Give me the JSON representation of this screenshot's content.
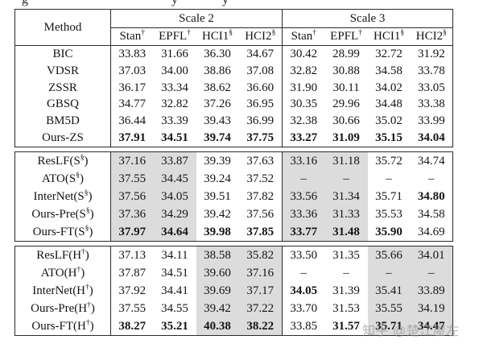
{
  "caption_fragments": [
    "g",
    "y",
    "y"
  ],
  "colors": {
    "shade": "#dcdcdc",
    "border": "#2b2b2b",
    "watermark_gray": "#8f8f8f"
  },
  "table": {
    "method_header": "Method",
    "groups": [
      "Scale 2",
      "Scale 3"
    ],
    "sub_columns": [
      "Stan{†}",
      "EPFL{†}",
      "HCI1{§}",
      "HCI2{§}"
    ],
    "blocks": [
      {
        "shaded_columns": "none",
        "rows": [
          {
            "method": "BIC",
            "values": [
              "33.83",
              "31.66",
              "36.30",
              "34.67",
              "30.42",
              "28.99",
              "32.72",
              "31.92"
            ],
            "bold": []
          },
          {
            "method": "VDSR",
            "values": [
              "37.03",
              "34.00",
              "38.86",
              "37.08",
              "32.82",
              "30.88",
              "34.58",
              "33.78"
            ],
            "bold": []
          },
          {
            "method": "ZSSR",
            "values": [
              "36.17",
              "33.34",
              "38.62",
              "36.60",
              "31.90",
              "30.11",
              "34.02",
              "33.05"
            ],
            "bold": []
          },
          {
            "method": "GBSQ",
            "values": [
              "34.77",
              "32.82",
              "37.26",
              "36.95",
              "30.35",
              "29.96",
              "34.48",
              "33.38"
            ],
            "bold": []
          },
          {
            "method": "BM5D",
            "values": [
              "36.44",
              "33.39",
              "39.43",
              "36.99",
              "32.38",
              "30.66",
              "35.02",
              "33.99"
            ],
            "bold": []
          },
          {
            "method": "Ours-ZS",
            "values": [
              "37.91",
              "34.51",
              "39.74",
              "37.75",
              "33.27",
              "31.09",
              "35.15",
              "34.04"
            ],
            "bold": [
              0,
              1,
              2,
              3,
              4,
              5,
              6,
              7
            ]
          }
        ]
      },
      {
        "shaded_columns": "stan-epfl",
        "rows": [
          {
            "method": "ResLF(S{§})",
            "values": [
              "37.16",
              "33.87",
              "39.39",
              "37.63",
              "33.16",
              "31.18",
              "35.72",
              "34.74"
            ],
            "bold": []
          },
          {
            "method": "ATO(S{§})",
            "values": [
              "37.55",
              "34.45",
              "39.24",
              "37.52",
              "–",
              "–",
              "–",
              "–"
            ],
            "bold": []
          },
          {
            "method": "InterNet(S{§})",
            "values": [
              "37.56",
              "34.05",
              "39.51",
              "37.82",
              "33.56",
              "31.34",
              "35.71",
              "34.80"
            ],
            "bold": [
              7
            ]
          },
          {
            "method": "Ours-Pre(S{§})",
            "values": [
              "37.36",
              "34.29",
              "39.42",
              "37.56",
              "33.36",
              "31.33",
              "35.53",
              "34.58"
            ],
            "bold": []
          },
          {
            "method": "Ours-FT(S{§})",
            "values": [
              "37.97",
              "34.64",
              "39.98",
              "37.85",
              "33.77",
              "31.48",
              "35.90",
              "34.69"
            ],
            "bold": [
              0,
              1,
              2,
              3,
              4,
              5,
              6
            ]
          }
        ]
      },
      {
        "shaded_columns": "hci",
        "rows": [
          {
            "method": "ResLF(H{†})",
            "values": [
              "37.13",
              "34.11",
              "38.58",
              "35.82",
              "33.50",
              "31.35",
              "35.66",
              "34.01"
            ],
            "bold": []
          },
          {
            "method": "ATO(H{†})",
            "values": [
              "37.87",
              "34.51",
              "39.60",
              "37.16",
              "–",
              "–",
              "–",
              "–"
            ],
            "bold": []
          },
          {
            "method": "InterNet(H{†})",
            "values": [
              "37.92",
              "34.41",
              "39.69",
              "37.17",
              "34.05",
              "31.39",
              "35.41",
              "33.89"
            ],
            "bold": [
              4
            ]
          },
          {
            "method": "Ours-Pre(H{†})",
            "values": [
              "37.55",
              "34.55",
              "39.42",
              "37.22",
              "33.70",
              "31.53",
              "35.55",
              "34.19"
            ],
            "bold": []
          },
          {
            "method": "Ours-FT(H{†})",
            "values": [
              "38.27",
              "35.21",
              "40.38",
              "38.22",
              "33.85",
              "31.57",
              "35.71",
              "34.47"
            ],
            "bold": [
              0,
              1,
              2,
              3,
              5,
              6,
              7
            ]
          }
        ]
      }
    ]
  },
  "watermark": "知乎 @楚江屋左"
}
